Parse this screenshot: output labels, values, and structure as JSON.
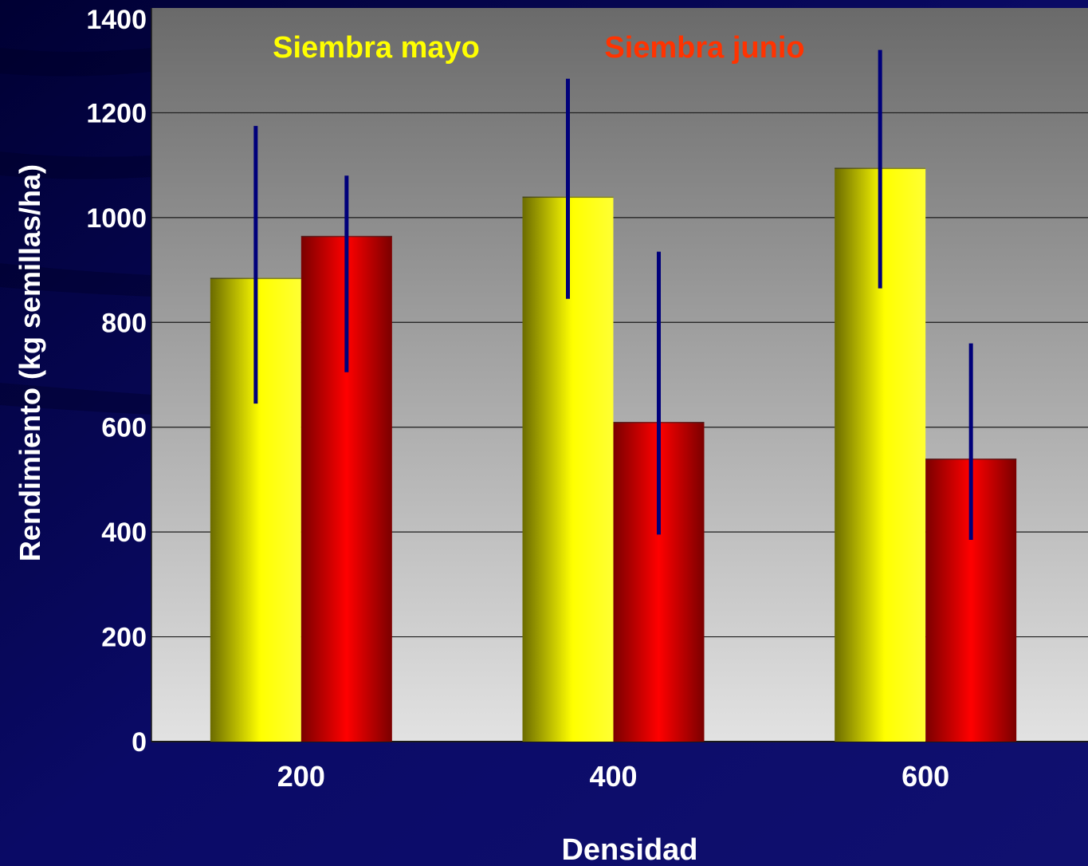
{
  "chart_data": {
    "type": "bar",
    "xlabel": "Densidad",
    "ylabel": "Rendimiento (kg semillas/ha)",
    "categories": [
      "200",
      "400",
      "600"
    ],
    "ylim": [
      0,
      1400
    ],
    "yticks": [
      0,
      200,
      400,
      600,
      800,
      1000,
      1200,
      1400
    ],
    "grid": true,
    "legend": "top",
    "series": [
      {
        "name": "Siembra mayo",
        "color": "#ffff00",
        "values": [
          885,
          1040,
          1095
        ],
        "error_low": [
          645,
          845,
          865
        ],
        "error_high": [
          1175,
          1265,
          1320
        ]
      },
      {
        "name": "Siembra junio",
        "color": "#ff0000",
        "values": [
          965,
          610,
          540
        ],
        "error_low": [
          705,
          395,
          385
        ],
        "error_high": [
          1080,
          935,
          760
        ]
      }
    ],
    "colors": {
      "background": "#0a0a66",
      "error_bar": "#00007a",
      "text": "#ffffff"
    }
  }
}
